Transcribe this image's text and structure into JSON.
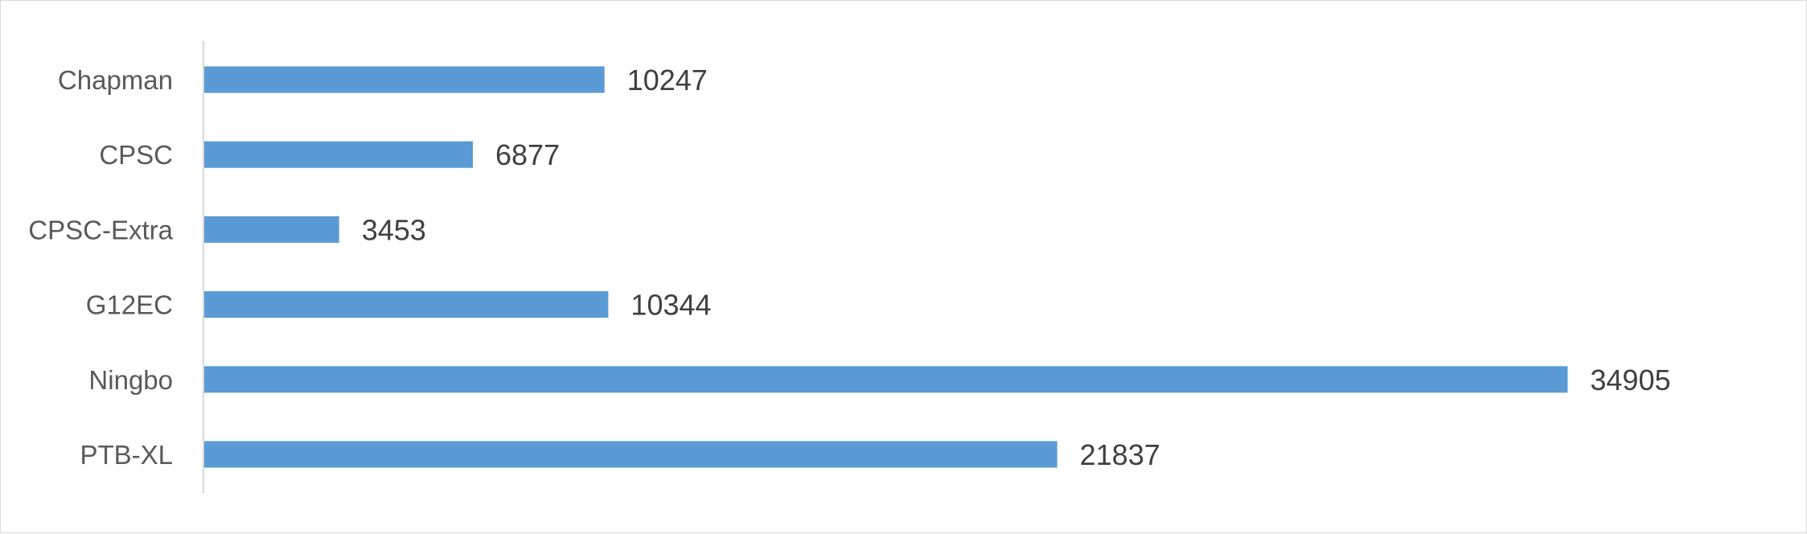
{
  "chart_data": {
    "type": "bar",
    "orientation": "horizontal",
    "categories": [
      "Chapman",
      "CPSC",
      "CPSC-Extra",
      "G12EC",
      "Ningbo",
      "PTB-XL"
    ],
    "values": [
      10247,
      6877,
      3453,
      10344,
      34905,
      21837
    ],
    "data_labels": [
      "10247",
      "6877",
      "3453",
      "10344",
      "34905",
      "21837"
    ],
    "title": "",
    "xlabel": "",
    "ylabel": "",
    "xlim": [
      0,
      35000
    ],
    "grid": false,
    "legend": "none",
    "colors": {
      "bar": "#5b9bd5",
      "axis": "#d9d9d9",
      "frame": "#d9d9d9"
    }
  }
}
